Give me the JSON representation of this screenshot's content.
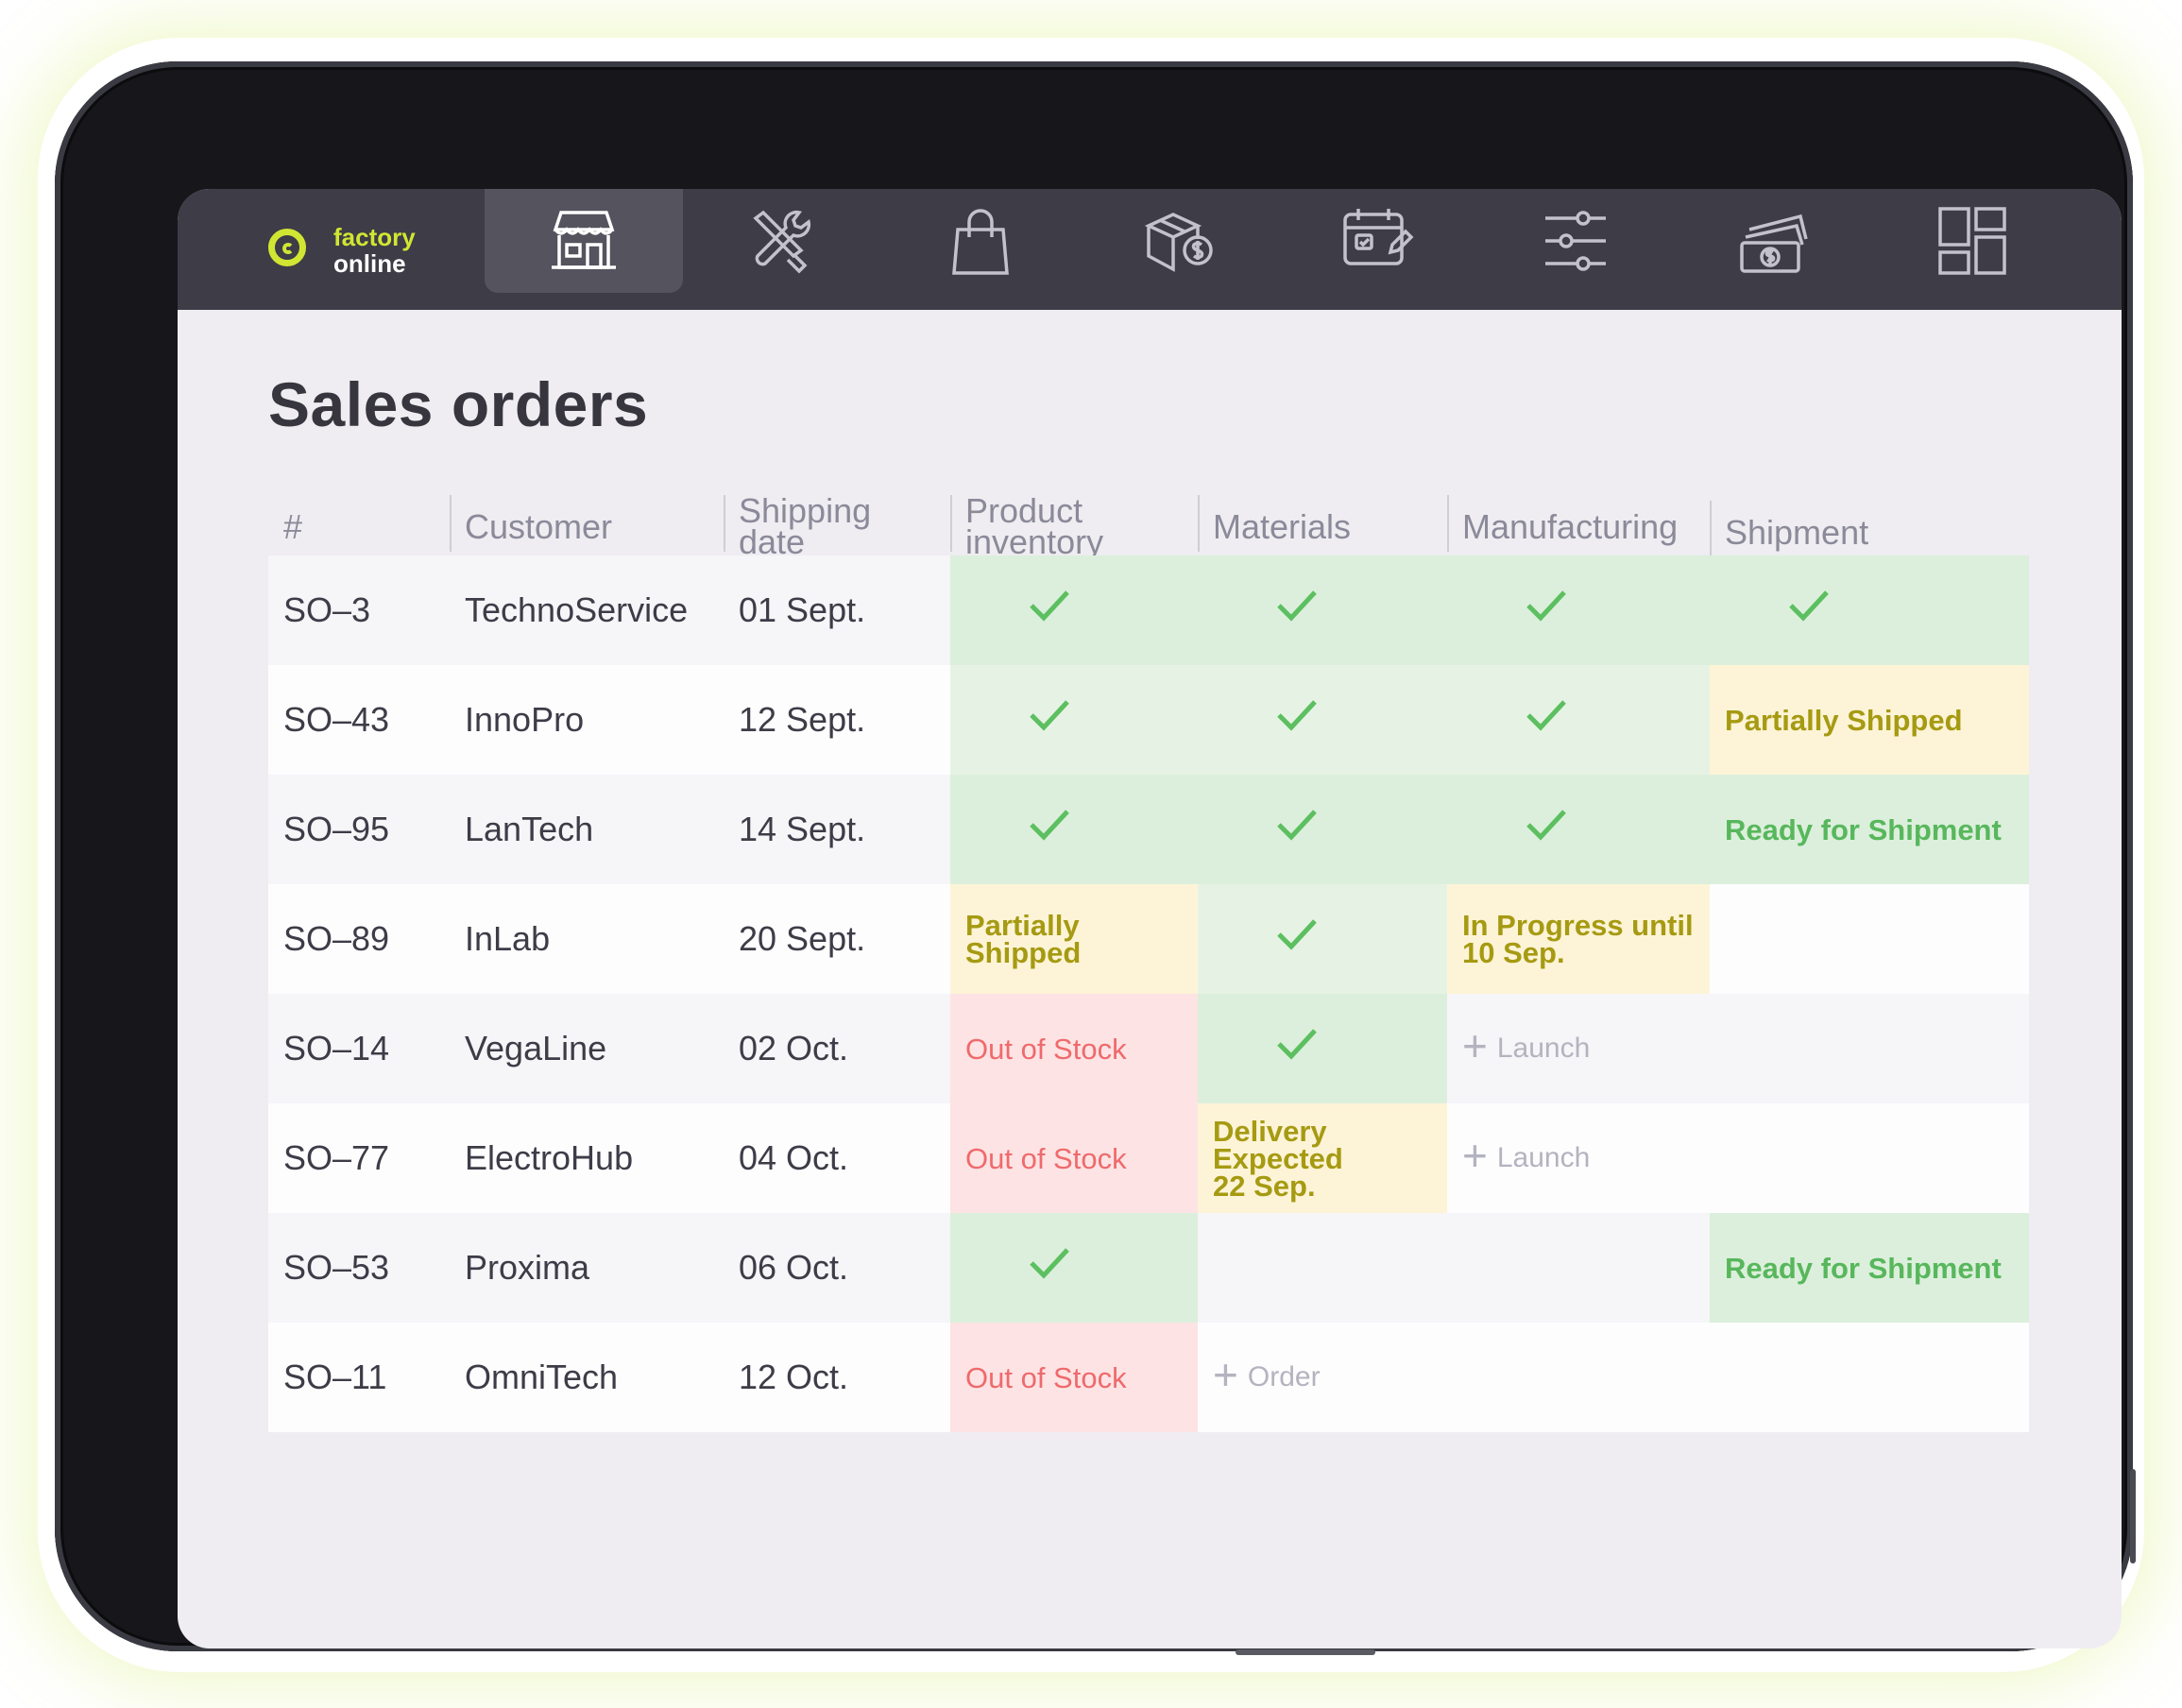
{
  "brand": {
    "line1": "factory",
    "line2": "online",
    "accent": "#d1e632"
  },
  "nav": {
    "items": [
      {
        "name": "storefront-icon",
        "active": true
      },
      {
        "name": "tools-icon",
        "active": false
      },
      {
        "name": "shopping-bag-icon",
        "active": false
      },
      {
        "name": "box-price-icon",
        "active": false
      },
      {
        "name": "calendar-edit-icon",
        "active": false
      },
      {
        "name": "sliders-icon",
        "active": false
      },
      {
        "name": "money-icon",
        "active": false
      },
      {
        "name": "dashboard-grid-icon",
        "active": false
      }
    ]
  },
  "page": {
    "title": "Sales orders"
  },
  "table": {
    "headers": {
      "num": "#",
      "customer": "Customer",
      "shipping_date_1": "Shipping",
      "shipping_date_2": "date",
      "inventory_1": "Product",
      "inventory_2": "inventory",
      "materials": "Materials",
      "manufacturing": "Manufacturing",
      "shipment": "Shipment"
    },
    "rows": [
      {
        "id": "SO–3",
        "customer": "TechnoService",
        "date": "01 Sept."
      },
      {
        "id": "SO–43",
        "customer": "InnoPro",
        "date": "12 Sept."
      },
      {
        "id": "SO–95",
        "customer": "LanTech",
        "date": "14 Sept."
      },
      {
        "id": "SO–89",
        "customer": "InLab",
        "date": "20 Sept."
      },
      {
        "id": "SO–14",
        "customer": "VegaLine",
        "date": "02 Oct."
      },
      {
        "id": "SO–77",
        "customer": "ElectroHub",
        "date": "04 Oct."
      },
      {
        "id": "SO–53",
        "customer": "Proxima",
        "date": "06 Oct."
      },
      {
        "id": "SO–11",
        "customer": "OmniTech",
        "date": "12 Oct."
      }
    ],
    "status": {
      "partially_shipped": "Partially Shipped",
      "ready_for_shipment": "Ready for Shipment",
      "in_progress_1": "In Progress until",
      "in_progress_2": "10 Sep.",
      "out_of_stock": "Out of Stock",
      "delivery_1": "Delivery",
      "delivery_2": "Expected",
      "delivery_3": "22 Sep.",
      "launch": "Launch",
      "order": "Order",
      "plus": "+"
    },
    "colors": {
      "done_green": "#5cbf60",
      "pending_yellow": "#a69a12",
      "alert_red": "#ef6a6c"
    }
  }
}
